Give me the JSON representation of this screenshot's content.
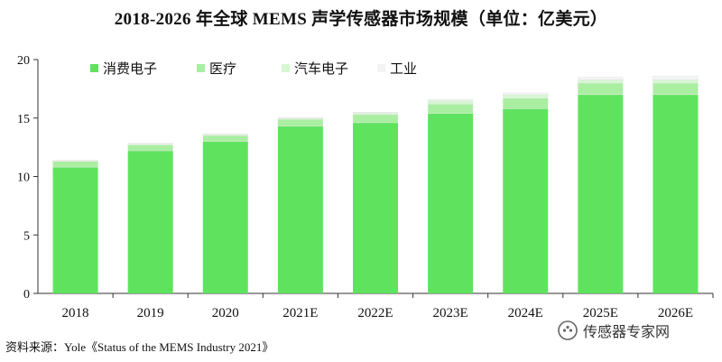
{
  "title": "2018-2026 年全球 MEMS 声学传感器市场规模（单位：亿美元）",
  "source": "资料来源：Yole《Status of the MEMS Industry 2021》",
  "watermark": "传感器专家网",
  "colors": {
    "消费电子": "#5fe35f",
    "医疗": "#a9eea1",
    "汽车电子": "#d6f7d2",
    "工业": "#f4f4f4"
  },
  "chart_data": {
    "type": "bar",
    "stacked": true,
    "categories": [
      "2018",
      "2019",
      "2020",
      "2021E",
      "2022E",
      "2023E",
      "2024E",
      "2025E",
      "2026E"
    ],
    "series": [
      {
        "name": "消费电子",
        "values": [
          10.8,
          12.2,
          13.0,
          14.3,
          14.6,
          15.4,
          15.8,
          17.0,
          17.0
        ]
      },
      {
        "name": "医疗",
        "values": [
          0.5,
          0.5,
          0.5,
          0.6,
          0.7,
          0.8,
          0.9,
          1.0,
          1.0
        ]
      },
      {
        "name": "汽车电子",
        "values": [
          0.05,
          0.1,
          0.1,
          0.1,
          0.15,
          0.3,
          0.3,
          0.3,
          0.3
        ]
      },
      {
        "name": "工业",
        "values": [
          0.05,
          0.05,
          0.05,
          0.05,
          0.05,
          0.1,
          0.15,
          0.2,
          0.3
        ]
      }
    ],
    "y_ticks": [
      "0",
      "5",
      "10",
      "15",
      "20"
    ],
    "ylim": [
      0,
      20
    ],
    "xlabel": "",
    "ylabel": "",
    "grid": false,
    "legend_position": "top-left inside"
  }
}
